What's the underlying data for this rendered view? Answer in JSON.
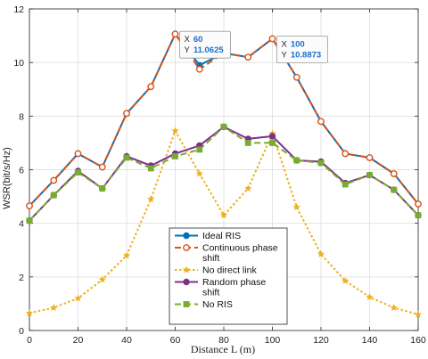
{
  "chart_data": {
    "type": "line",
    "xlabel": "Distance L (m)",
    "ylabel": "WSR(bit/s/Hz)",
    "xlim": [
      0,
      160
    ],
    "ylim": [
      0,
      12
    ],
    "xticks": [
      0,
      20,
      40,
      60,
      80,
      100,
      120,
      140,
      160
    ],
    "yticks": [
      0,
      2,
      4,
      6,
      8,
      10,
      12
    ],
    "grid": true,
    "legend_position": "bottom-center",
    "x": [
      0,
      10,
      20,
      30,
      40,
      50,
      60,
      70,
      80,
      90,
      100,
      110,
      120,
      130,
      140,
      150,
      160
    ],
    "series": [
      {
        "name": "Ideal RIS",
        "color": "#0072BD",
        "line": "solid",
        "marker": "circle-filled",
        "values": [
          4.65,
          5.6,
          6.6,
          6.1,
          8.1,
          9.1,
          11.0625,
          9.9,
          10.35,
          10.2,
          10.8873,
          9.45,
          7.8,
          6.6,
          6.45,
          5.85,
          4.72
        ]
      },
      {
        "name": "Continuous phase shift",
        "color": "#D95319",
        "line": "dashed",
        "marker": "circle-open",
        "values": [
          4.65,
          5.6,
          6.6,
          6.1,
          8.1,
          9.1,
          11.0625,
          9.75,
          10.35,
          10.2,
          10.8873,
          9.45,
          7.8,
          6.6,
          6.45,
          5.85,
          4.72
        ]
      },
      {
        "name": "No direct link",
        "color": "#EDB120",
        "line": "dotted",
        "marker": "star",
        "values": [
          0.65,
          0.85,
          1.2,
          1.9,
          2.8,
          4.9,
          7.45,
          5.85,
          4.3,
          5.3,
          7.35,
          4.6,
          2.85,
          1.85,
          1.25,
          0.85,
          0.6
        ]
      },
      {
        "name": "Random phase shift",
        "color": "#7E2F8E",
        "line": "solid",
        "marker": "circle-filled",
        "values": [
          4.1,
          5.05,
          5.95,
          5.3,
          6.5,
          6.15,
          6.6,
          6.9,
          7.6,
          7.15,
          7.25,
          6.35,
          6.3,
          5.5,
          5.8,
          5.25,
          4.3
        ]
      },
      {
        "name": "No RIS",
        "color": "#77AC30",
        "line": "dashed",
        "marker": "square-filled",
        "values": [
          4.1,
          5.05,
          5.9,
          5.3,
          6.45,
          6.05,
          6.5,
          6.75,
          7.6,
          7.0,
          7.0,
          6.35,
          6.25,
          5.45,
          5.8,
          5.25,
          4.3
        ]
      }
    ],
    "tooltips": [
      {
        "x_label": "X",
        "x_value": "60",
        "y_label": "Y",
        "y_value": "11.0625",
        "x": 60,
        "y": 11.0625
      },
      {
        "x_label": "X",
        "x_value": "100",
        "y_label": "Y",
        "y_value": "10.8873",
        "x": 100,
        "y": 10.8873
      }
    ]
  }
}
